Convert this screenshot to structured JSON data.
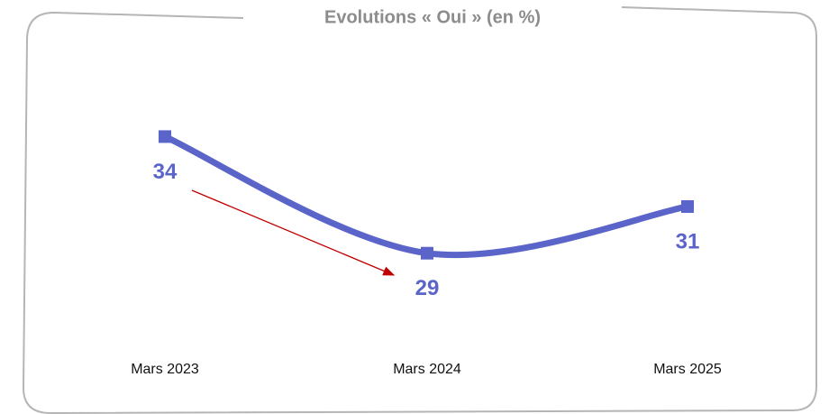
{
  "chart_data": {
    "type": "line",
    "title": "Evolutions « Oui » (en %)",
    "categories": [
      "Mars 2023",
      "Mars 2024",
      "Mars 2025"
    ],
    "series": [
      {
        "name": "Oui",
        "color": "#5b65c9",
        "values": [
          34,
          29,
          31
        ]
      }
    ],
    "ylim": [
      24,
      38
    ]
  }
}
